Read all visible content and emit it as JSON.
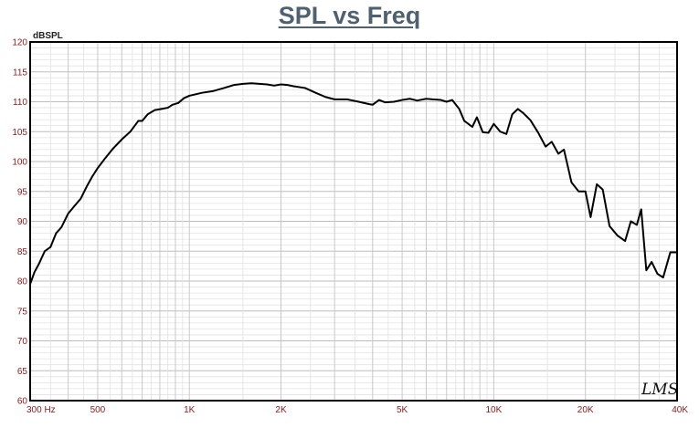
{
  "title": "SPL vs Freq",
  "logo_text": "LMS",
  "colors": {
    "curve": "#000000",
    "grid": "#c8c8c8",
    "tick_label": "#8b1a1a",
    "title": "#4f6170"
  },
  "chart_data": {
    "type": "line",
    "title": "SPL vs Freq",
    "xlabel": "",
    "ylabel": "dBSPL",
    "xscale": "log",
    "xlim": [
      300,
      40000
    ],
    "ylim": [
      60,
      120
    ],
    "grid": true,
    "yticks": [
      60,
      65,
      70,
      75,
      80,
      85,
      90,
      95,
      100,
      105,
      110,
      115,
      120
    ],
    "xticks": [
      {
        "value": 300,
        "label": "300  Hz"
      },
      {
        "value": 500,
        "label": "500"
      },
      {
        "value": 1000,
        "label": "1K"
      },
      {
        "value": 2000,
        "label": "2K"
      },
      {
        "value": 5000,
        "label": "5K"
      },
      {
        "value": 10000,
        "label": "10K"
      },
      {
        "value": 20000,
        "label": "20K"
      },
      {
        "value": 40000,
        "label": "40K"
      }
    ],
    "series": [
      {
        "x": [
          300,
          310,
          320,
          335,
          350,
          365,
          380,
          400,
          420,
          440,
          460,
          480,
          500,
          530,
          560,
          600,
          640,
          680,
          700,
          730,
          770,
          810,
          850,
          880,
          920,
          960,
          1000,
          1100,
          1200,
          1300,
          1400,
          1500,
          1600,
          1700,
          1800,
          1900,
          2000,
          2100,
          2200,
          2400,
          2600,
          2800,
          3000,
          3300,
          3600,
          3900,
          4000,
          4200,
          4400,
          4700,
          5000,
          5300,
          5600,
          6000,
          6300,
          6700,
          7000,
          7300,
          7700,
          8000,
          8500,
          8800,
          9200,
          9600,
          10000,
          10500,
          11000,
          11500,
          12000,
          12500,
          13200,
          14000,
          14800,
          15500,
          16300,
          17000,
          18000,
          19000,
          20000,
          20800,
          21800,
          22800,
          24000,
          25500,
          27000,
          28200,
          29500,
          30500,
          31700,
          33000,
          34500,
          36000,
          38000,
          40000
        ],
        "y": [
          79.5,
          81.5,
          82.8,
          85.0,
          85.7,
          88.0,
          89.0,
          91.3,
          92.6,
          93.8,
          95.8,
          97.5,
          98.9,
          100.6,
          102.1,
          103.7,
          105.0,
          106.8,
          106.8,
          107.9,
          108.6,
          108.8,
          109.0,
          109.5,
          109.8,
          110.6,
          111.0,
          111.5,
          111.8,
          112.3,
          112.8,
          113.0,
          113.1,
          113.0,
          112.9,
          112.7,
          112.9,
          112.8,
          112.6,
          112.3,
          111.5,
          110.8,
          110.4,
          110.4,
          110.0,
          109.6,
          109.5,
          110.3,
          109.9,
          110.0,
          110.3,
          110.5,
          110.2,
          110.5,
          110.4,
          110.3,
          110.0,
          110.3,
          108.8,
          106.8,
          105.8,
          107.4,
          104.9,
          104.8,
          106.3,
          105.0,
          104.6,
          107.9,
          108.8,
          108.1,
          106.9,
          104.8,
          102.5,
          103.3,
          101.3,
          102.0,
          96.5,
          95.0,
          95.0,
          90.7,
          96.2,
          95.3,
          89.2,
          87.6,
          86.7,
          90.0,
          89.4,
          92.0,
          81.8,
          83.2,
          81.2,
          80.6,
          84.8,
          84.8
        ]
      }
    ]
  }
}
